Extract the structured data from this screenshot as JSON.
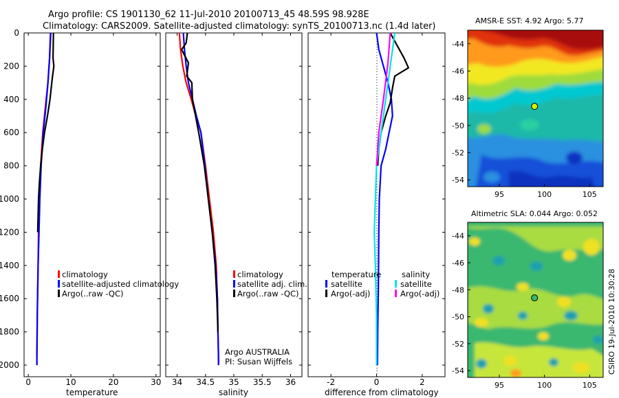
{
  "header": {
    "line1": "Argo profile: CS 1901130_62 11-Jul-2010 20100713_45 48.59S 98.928E",
    "line2": "Climatology: CARS2009. Satellite-adjusted climatology: synTS_20100713.nc (1.4d later)"
  },
  "colors": {
    "climatology": "#ff0000",
    "satellite": "#0000ff",
    "argo": "#000000",
    "sal_sat": "#00e5e5",
    "sal_argo": "#ff00ff"
  },
  "chart_data": [
    {
      "type": "line",
      "xlabel": "temperature",
      "xlim": [
        -1,
        31
      ],
      "xticks": [
        "0",
        "10",
        "20",
        "30"
      ],
      "ylim": [
        2070,
        0
      ],
      "yticks": [
        "0",
        "200",
        "400",
        "600",
        "800",
        "1000",
        "1200",
        "1400",
        "1600",
        "1800",
        "2000"
      ],
      "legend": [
        "climatology",
        "satellite-adjusted climatology",
        "Argo(..raw -QC)"
      ],
      "series": [
        {
          "name": "climatology",
          "x": [
            5.3,
            5.0,
            4.6,
            4.0,
            3.4,
            2.9,
            2.6,
            2.4,
            2.3,
            2.2,
            2.1,
            2.05,
            2.0,
            2.0
          ],
          "y": [
            0,
            150,
            300,
            450,
            600,
            800,
            1000,
            1200,
            1400,
            1550,
            1700,
            1850,
            1950,
            2000
          ]
        },
        {
          "name": "satellite-adjusted climatology",
          "x": [
            5.2,
            5.0,
            4.6,
            4.1,
            3.5,
            3.0,
            2.7,
            2.5,
            2.3,
            2.2,
            2.1,
            2.05,
            2.0,
            2.0
          ],
          "y": [
            0,
            150,
            300,
            450,
            600,
            800,
            1000,
            1200,
            1400,
            1550,
            1700,
            1850,
            1950,
            2000
          ]
        },
        {
          "name": "Argo(..raw -QC)",
          "x": [
            5.9,
            5.8,
            6.0,
            5.6,
            5.1,
            4.5,
            3.8,
            3.3,
            2.9,
            2.6,
            2.4,
            2.3,
            2.2
          ],
          "y": [
            0,
            150,
            200,
            280,
            400,
            500,
            600,
            700,
            800,
            900,
            1000,
            1100,
            1200
          ]
        }
      ]
    },
    {
      "type": "line",
      "xlabel": "salinity",
      "xlim": [
        33.8,
        36.2
      ],
      "xticks": [
        "34",
        "34.5",
        "35",
        "35.5",
        "36"
      ],
      "ylim": [
        2070,
        0
      ],
      "legend": [
        "climatology",
        "satellite adj. clim.",
        "Argo(..raw -QC)"
      ],
      "annotation": [
        "Argo AUSTRALIA",
        "PI: Susan Wijffels"
      ],
      "series": [
        {
          "name": "climatology",
          "x": [
            34.04,
            34.06,
            34.1,
            34.16,
            34.25,
            34.33,
            34.42,
            34.5,
            34.57,
            34.64,
            34.69,
            34.71,
            34.72,
            34.73,
            34.73
          ],
          "y": [
            0,
            100,
            200,
            300,
            400,
            500,
            600,
            800,
            1000,
            1200,
            1400,
            1600,
            1800,
            1950,
            2000
          ]
        },
        {
          "name": "satellite adj. clim.",
          "x": [
            34.11,
            34.13,
            34.16,
            34.2,
            34.27,
            34.34,
            34.42,
            34.49,
            34.55,
            34.62,
            34.68,
            34.71,
            34.72,
            34.73,
            34.73
          ],
          "y": [
            0,
            100,
            200,
            300,
            400,
            500,
            600,
            800,
            1000,
            1200,
            1400,
            1600,
            1800,
            1950,
            2000
          ]
        },
        {
          "name": "Argo(..raw -QC)",
          "x": [
            34.18,
            34.16,
            34.08,
            34.2,
            34.17,
            34.26,
            34.27,
            34.38,
            34.48,
            34.55,
            34.62,
            34.67,
            34.7,
            34.72
          ],
          "y": [
            0,
            60,
            100,
            180,
            260,
            300,
            400,
            600,
            800,
            1000,
            1200,
            1400,
            1600,
            1800
          ]
        }
      ]
    },
    {
      "type": "line",
      "xlabel": "difference from climatology",
      "xlim": [
        -3,
        3
      ],
      "xticks": [
        "-2",
        "0",
        "2"
      ],
      "ylim": [
        2070,
        0
      ],
      "legend_left_title": "temperature",
      "legend_right_title": "salinity",
      "legend_left": [
        "satellite",
        "Argo(-adj)"
      ],
      "legend_right": [
        "satellite",
        "Argo(-adj)"
      ],
      "series": [
        {
          "name": "temperature satellite",
          "x": [
            0.0,
            0.1,
            0.3,
            0.5,
            0.65,
            0.7,
            0.55,
            0.4,
            0.2,
            0.12,
            0.1,
            0.08,
            0.05,
            0.04
          ],
          "y": [
            0,
            100,
            200,
            300,
            400,
            500,
            600,
            700,
            800,
            1000,
            1200,
            1500,
            1800,
            2000
          ]
        },
        {
          "name": "temperature Argo(-adj)",
          "x": [
            0.6,
            1.2,
            1.4,
            0.8,
            0.7,
            0.6,
            0.4,
            0.2,
            0.1,
            0.05
          ],
          "y": [
            0,
            150,
            210,
            260,
            330,
            420,
            500,
            600,
            700,
            800
          ]
        },
        {
          "name": "salinity satellite",
          "x": [
            0.8,
            0.6,
            0.4,
            0.2,
            0.0,
            -0.05,
            -0.1,
            -0.05,
            0.0,
            0.0
          ],
          "y": [
            0,
            200,
            400,
            600,
            800,
            1000,
            1200,
            1400,
            1700,
            2000
          ]
        },
        {
          "name": "salinity Argo(-adj)",
          "x": [
            0.6,
            0.5,
            0.3,
            0.1,
            0.0
          ],
          "y": [
            0,
            180,
            400,
            600,
            800
          ]
        }
      ]
    }
  ],
  "maps": [
    {
      "title": "AMSR-E SST: 4.92 Argo: 5.77",
      "x_ticks": [
        "95",
        "100",
        "105"
      ],
      "y_ticks": [
        "-44",
        "-46",
        "-48",
        "-50",
        "-52",
        "-54"
      ],
      "marker_lon": 98.9,
      "marker_lat": -48.6
    },
    {
      "title": "Altimetric SLA: 0.044 Argo: 0.052",
      "x_ticks": [
        "95",
        "100",
        "105"
      ],
      "y_ticks": [
        "-44",
        "-46",
        "-48",
        "-50",
        "-52",
        "-54"
      ],
      "marker_lon": 98.9,
      "marker_lat": -48.6
    }
  ],
  "footer_stamp": "CSIRO 19-Jul-2010 10:30:28"
}
